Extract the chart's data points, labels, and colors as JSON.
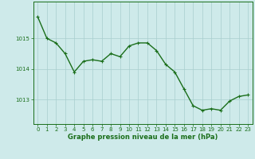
{
  "x": [
    0,
    1,
    2,
    3,
    4,
    5,
    6,
    7,
    8,
    9,
    10,
    11,
    12,
    13,
    14,
    15,
    16,
    17,
    18,
    19,
    20,
    21,
    22,
    23
  ],
  "y": [
    1015.7,
    1015.0,
    1014.85,
    1014.5,
    1013.9,
    1014.25,
    1014.3,
    1014.25,
    1014.5,
    1014.4,
    1014.75,
    1014.85,
    1014.85,
    1014.6,
    1014.15,
    1013.9,
    1013.35,
    1012.8,
    1012.65,
    1012.7,
    1012.65,
    1012.95,
    1013.1,
    1013.15
  ],
  "line_color": "#1a6e1a",
  "marker": "+",
  "marker_size": 3,
  "background_color": "#ceeaea",
  "grid_color": "#a8cece",
  "xlabel": "Graphe pression niveau de la mer (hPa)",
  "xlabel_fontsize": 6,
  "ylabel_ticks": [
    1013,
    1014,
    1015
  ],
  "ylim": [
    1012.2,
    1016.2
  ],
  "xlim": [
    -0.5,
    23.5
  ],
  "xtick_labels": [
    "0",
    "1",
    "2",
    "3",
    "4",
    "5",
    "6",
    "7",
    "8",
    "9",
    "10",
    "11",
    "12",
    "13",
    "14",
    "15",
    "16",
    "17",
    "18",
    "19",
    "20",
    "21",
    "22",
    "23"
  ],
  "tick_fontsize": 5,
  "line_width": 1.0,
  "title_color": "#1a6e1a",
  "axis_color": "#1a6e1a"
}
